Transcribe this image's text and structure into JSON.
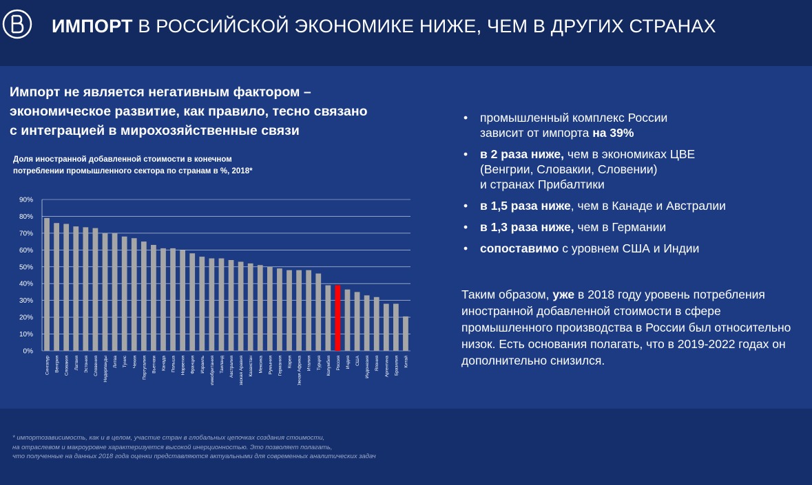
{
  "header": {
    "title_bold": "ИМПОРТ",
    "title_rest": " В РОССИЙСКОЙ ЭКОНОМИКЕ НИЖЕ, ЧЕМ В ДРУГИХ СТРАНАХ",
    "logo_icon": "hse-logo-icon"
  },
  "subtitle": "Импорт не является негативным фактором –\n экономическое развитие, как правило, тесно связано\nс интеграцией в мирохозяйственные связи",
  "chart_caption": "Доля иностранной добавленной стоимости в конечном\nпотреблении промышленного сектора по странам в %, 2018*",
  "chart_data": {
    "type": "bar",
    "categories": [
      "Сингапур",
      "Венгрия",
      "Словакия",
      "Латвия",
      "Эстония",
      "Словения",
      "Нидерланды",
      "Литва",
      "Тунис",
      "Чехия",
      "Португалия",
      "Вьетнам",
      "Канада",
      "Польша",
      "Норвегия",
      "Франция",
      "Израиль",
      "Великобритания",
      "Таиланд",
      "Австралия",
      "Саудовская Аравия",
      "Казахстан",
      "Мексика",
      "Румыния",
      "Германия",
      "Корея",
      "Южная Африка",
      "Италия",
      "Турция",
      "Колумбия",
      "Россия",
      "Индия",
      "США",
      "Индонезия",
      "Япония",
      "Аргентина",
      "Бразилия",
      "Китай"
    ],
    "values": [
      79,
      76,
      75.5,
      74,
      73.5,
      73,
      70,
      70,
      68,
      67,
      65,
      63,
      61,
      61,
      60,
      58,
      56,
      55,
      55,
      54,
      53,
      52,
      51,
      50,
      49,
      48,
      48,
      48,
      46,
      39,
      39,
      36.5,
      35,
      33,
      32,
      28,
      28,
      20.5
    ],
    "highlight": "Россия",
    "yticks": [
      "0%",
      "10%",
      "20%",
      "30%",
      "40%",
      "50%",
      "60%",
      "70%",
      "80%",
      "90%"
    ],
    "ylim": [
      0,
      90
    ],
    "grid": true,
    "bar_color": "#a6a6a6",
    "highlight_color": "#ff0000"
  },
  "bullets": [
    {
      "pre": "промышленный комплекс России\nзависит от импорта ",
      "bold": "на 39%",
      "post": ""
    },
    {
      "pre": "",
      "bold": "в 2 раза ниже,",
      "post": " чем в экономиках ЦВЕ\n(Венгрии, Словакии, Словении)\nи странах Прибалтики"
    },
    {
      "pre": "",
      "bold": "в 1,5 раза ниже",
      "post": ", чем в Канаде и Австралии"
    },
    {
      "pre": "",
      "bold": "в 1,3 раза ниже,",
      "post": " чем в Германии"
    },
    {
      "pre": "",
      "bold": "сопоставимо",
      "post": " с уровнем США и Индии"
    }
  ],
  "conclusion": {
    "pre": "Таким образом, ",
    "bold": "уже",
    "post": " в 2018 году уровень потребления иностранной добавленной стоимости в сфере промышленного производства в России был относительно низок. Есть основания полагать, что в 2019-2022 годах он дополнительно снизился."
  },
  "footnote": "* импортозависимость, как и в целом, участие стран в глобальных цепочках создания стоимости,\nна отраслевом и макроуровне характеризуется высокой инерционностью. Это позволяет полагать,\nчто полученные на данных 2018 года оценки представляются актуальными для современных аналитических задач",
  "colors": {
    "background": "#152f6d",
    "header_bg": "#122a5f",
    "panel_bg": "#1c3b83"
  }
}
